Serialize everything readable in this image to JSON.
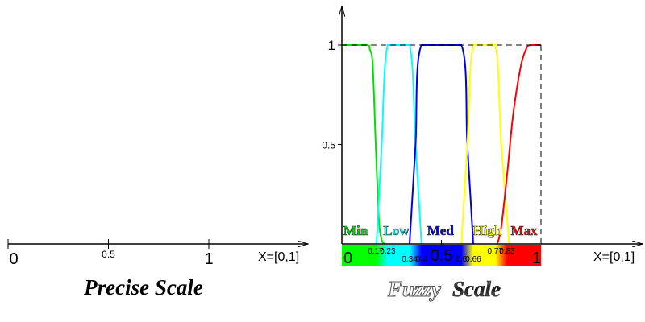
{
  "precise": {
    "ticks": [
      {
        "value": 0,
        "label": "0"
      },
      {
        "value": 0.5,
        "label": "0.5"
      },
      {
        "value": 1,
        "label": "1"
      }
    ],
    "axis_label": "X=[0,1]",
    "title": "Precise Scale"
  },
  "fuzzy": {
    "title_part1": "Fuzzy",
    "title_part2": "Scale",
    "axis_label": "X=[0,1]",
    "y_ticks": [
      {
        "value": 1,
        "label": "1"
      },
      {
        "value": 0.5,
        "label": "0.5"
      }
    ],
    "colorbar_labels": [
      {
        "value": 0,
        "label": "0",
        "row": "top",
        "big": true
      },
      {
        "value": 0.17,
        "label": "0.17",
        "row": "top"
      },
      {
        "value": 0.23,
        "label": "0.23",
        "row": "top"
      },
      {
        "value": 0.34,
        "label": "0.34",
        "row": "bottom"
      },
      {
        "value": 0.4,
        "label": "0.4",
        "row": "bottom"
      },
      {
        "value": 0.5,
        "label": "0.5",
        "row": "mid",
        "big": true
      },
      {
        "value": 0.6,
        "label": "0.6",
        "row": "bottom"
      },
      {
        "value": 0.66,
        "label": "0.66",
        "row": "bottom"
      },
      {
        "value": 0.77,
        "label": "0.77",
        "row": "top"
      },
      {
        "value": 0.83,
        "label": "0.83",
        "row": "top"
      },
      {
        "value": 1,
        "label": "1",
        "row": "top",
        "big": true
      }
    ],
    "sets": [
      {
        "name": "Min",
        "color": "#00e000",
        "label_x": 0.0,
        "points": [
          [
            0,
            1
          ],
          [
            0.125,
            1
          ],
          [
            0.14,
            0.98
          ],
          [
            0.155,
            0.9
          ],
          [
            0.17,
            0.5
          ],
          [
            0.186,
            0.12
          ],
          [
            0.2,
            0.02
          ],
          [
            0.215,
            0
          ]
        ]
      },
      {
        "name": "Low",
        "color": "#00ffff",
        "label_x": 0.2,
        "points": [
          [
            0.174,
            0
          ],
          [
            0.2,
            0.5
          ],
          [
            0.23,
            1
          ],
          [
            0.34,
            1
          ],
          [
            0.37,
            0.5
          ],
          [
            0.4,
            0
          ]
        ]
      },
      {
        "name": "Med",
        "color": "#0000ee",
        "label_x": 0.42,
        "points": [
          [
            0.34,
            0
          ],
          [
            0.37,
            0.5
          ],
          [
            0.4,
            1
          ],
          [
            0.6,
            1
          ],
          [
            0.63,
            0.5
          ],
          [
            0.66,
            0
          ]
        ]
      },
      {
        "name": "High",
        "color": "#ffff00",
        "label_x": 0.65,
        "points": [
          [
            0.6,
            0
          ],
          [
            0.63,
            0.5
          ],
          [
            0.66,
            1
          ],
          [
            0.77,
            1
          ],
          [
            0.8,
            0.5
          ],
          [
            0.84,
            0
          ]
        ]
      },
      {
        "name": "Max",
        "color": "#ff0000",
        "label_x": 0.84,
        "points": [
          [
            0.78,
            0
          ],
          [
            0.8,
            0.08
          ],
          [
            0.83,
            0.35
          ],
          [
            0.86,
            0.65
          ],
          [
            0.9,
            0.9
          ],
          [
            0.93,
            0.99
          ],
          [
            0.95,
            1
          ],
          [
            1,
            1
          ]
        ]
      }
    ],
    "colorbar_stops": [
      {
        "value": 0,
        "color": "#00ff00"
      },
      {
        "value": 0.17,
        "color": "#00ff00"
      },
      {
        "value": 0.23,
        "color": "#00ffff"
      },
      {
        "value": 0.34,
        "color": "#00ffff"
      },
      {
        "value": 0.4,
        "color": "#0000ff"
      },
      {
        "value": 0.6,
        "color": "#0000ff"
      },
      {
        "value": 0.66,
        "color": "#ffff00"
      },
      {
        "value": 0.77,
        "color": "#ffff00"
      },
      {
        "value": 0.83,
        "color": "#ff0000"
      },
      {
        "value": 1,
        "color": "#ff0000"
      }
    ]
  }
}
